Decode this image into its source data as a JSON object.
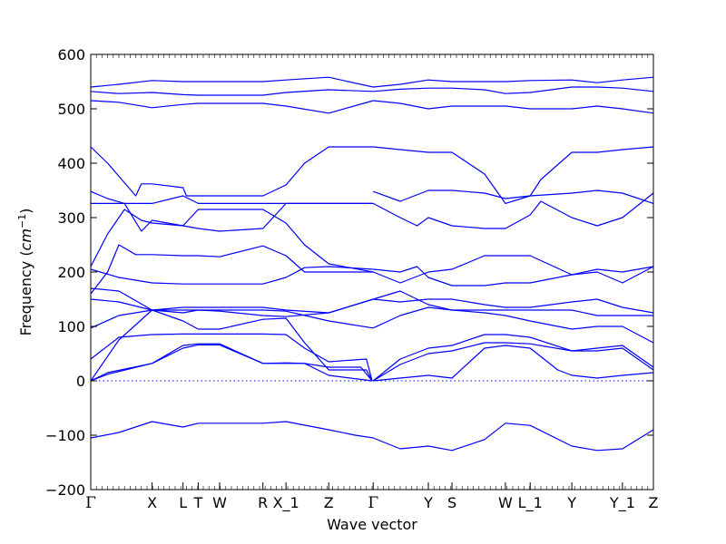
{
  "chart_data": {
    "type": "line",
    "title": "",
    "xlabel": "Wave vector",
    "ylabel": "Frequency",
    "ylabel_unit": "cm",
    "ylabel_unit_exp": "−1",
    "ylim": [
      -200,
      600
    ],
    "xlim": [
      0,
      1
    ],
    "yticks": [
      -200,
      -100,
      0,
      100,
      200,
      300,
      400,
      500,
      600
    ],
    "ytick_labels": [
      "−200",
      "−100",
      "0",
      "100",
      "200",
      "300",
      "400",
      "500",
      "600"
    ],
    "high_symmetry_points": [
      {
        "label": "Γ",
        "x": 0.0
      },
      {
        "label": "X",
        "x": 0.109
      },
      {
        "label": "L",
        "x": 0.164
      },
      {
        "label": "T",
        "x": 0.191
      },
      {
        "label": "W",
        "x": 0.229
      },
      {
        "label": "R",
        "x": 0.306
      },
      {
        "label": "X_1",
        "x": 0.347
      },
      {
        "label": "Z",
        "x": 0.423
      },
      {
        "label": "Γ",
        "x": 0.502
      },
      {
        "label": "Y",
        "x": 0.6
      },
      {
        "label": "S",
        "x": 0.642
      },
      {
        "label": "W",
        "x": 0.737
      },
      {
        "label": "L_1",
        "x": 0.781
      },
      {
        "label": "Y",
        "x": 0.855
      },
      {
        "label": "Y_1",
        "x": 0.945
      },
      {
        "label": "Z",
        "x": 1.0
      }
    ],
    "zero_line": {
      "y": 0,
      "style": "dotted"
    },
    "line_color": "#0000ff",
    "series": [
      {
        "x": [
          0,
          0.05,
          0.109,
          0.164,
          0.191,
          0.229,
          0.306,
          0.347,
          0.423,
          0.47,
          0.502,
          0.55,
          0.6,
          0.642,
          0.7,
          0.737,
          0.781,
          0.855,
          0.9,
          0.945,
          1.0
        ],
        "y": [
          -105,
          -95,
          -75,
          -85,
          -78,
          -78,
          -78,
          -75,
          -90,
          -100,
          -105,
          -125,
          -120,
          -128,
          -108,
          -78,
          -82,
          -120,
          -128,
          -125,
          -90
        ]
      },
      {
        "x": [
          0,
          0.03,
          0.109,
          0.164,
          0.191,
          0.229,
          0.306,
          0.347,
          0.38,
          0.423,
          0.5
        ],
        "y": [
          0,
          15,
          32,
          65,
          68,
          68,
          32,
          32,
          32,
          10,
          0
        ]
      },
      {
        "x": [
          0,
          0.03,
          0.109,
          0.164,
          0.191,
          0.229,
          0.306,
          0.347,
          0.38,
          0.423,
          0.48,
          0.5
        ],
        "y": [
          0,
          12,
          32,
          60,
          66,
          66,
          32,
          33,
          32,
          25,
          25,
          0
        ]
      },
      {
        "x": [
          0,
          0.05,
          0.109,
          0.164,
          0.191,
          0.229,
          0.306,
          0.347,
          0.38,
          0.423,
          0.49,
          0.5
        ],
        "y": [
          40,
          80,
          85,
          86,
          86,
          86,
          86,
          85,
          60,
          35,
          40,
          0
        ]
      },
      {
        "x": [
          0,
          0.05,
          0.109,
          0.164,
          0.191,
          0.229,
          0.306,
          0.347,
          0.38,
          0.423,
          0.49,
          0.5
        ],
        "y": [
          0,
          75,
          130,
          110,
          95,
          95,
          113,
          115,
          70,
          20,
          20,
          0
        ]
      },
      {
        "x": [
          0,
          0.05,
          0.109,
          0.164,
          0.191,
          0.229,
          0.306,
          0.347,
          0.423,
          0.502
        ],
        "y": [
          97,
          120,
          130,
          130,
          130,
          130,
          130,
          128,
          110,
          97
        ]
      },
      {
        "x": [
          0,
          0.05,
          0.109,
          0.164,
          0.191,
          0.229,
          0.306,
          0.347,
          0.423,
          0.502
        ],
        "y": [
          150,
          145,
          130,
          135,
          135,
          135,
          135,
          130,
          125,
          150
        ]
      },
      {
        "x": [
          0,
          0.05,
          0.109,
          0.164,
          0.191,
          0.229,
          0.306,
          0.347,
          0.423,
          0.502
        ],
        "y": [
          170,
          165,
          130,
          125,
          130,
          128,
          120,
          118,
          125,
          150
        ]
      },
      {
        "x": [
          0,
          0.03,
          0.05,
          0.08,
          0.109,
          0.164,
          0.191,
          0.229,
          0.306,
          0.347,
          0.38,
          0.423,
          0.502
        ],
        "y": [
          160,
          200,
          250,
          232,
          232,
          230,
          230,
          228,
          248,
          230,
          200,
          200,
          200
        ]
      },
      {
        "x": [
          0,
          0.05,
          0.109,
          0.164,
          0.191,
          0.229,
          0.306,
          0.347,
          0.38,
          0.423,
          0.502
        ],
        "y": [
          205,
          190,
          180,
          178,
          178,
          178,
          178,
          190,
          208,
          210,
          205
        ]
      },
      {
        "x": [
          0,
          0.03,
          0.06,
          0.09,
          0.109,
          0.164,
          0.191,
          0.229,
          0.306,
          0.347,
          0.38,
          0.423,
          0.502
        ],
        "y": [
          210,
          270,
          315,
          295,
          290,
          285,
          315,
          315,
          315,
          290,
          250,
          215,
          200
        ]
      },
      {
        "x": [
          0,
          0.06,
          0.09,
          0.109,
          0.164,
          0.191,
          0.229,
          0.306,
          0.347,
          0.423,
          0.502
        ],
        "y": [
          326,
          326,
          275,
          295,
          285,
          280,
          275,
          280,
          326,
          326,
          326
        ]
      },
      {
        "x": [
          0,
          0.03,
          0.06,
          0.109,
          0.164,
          0.191,
          0.229,
          0.306,
          0.347,
          0.38,
          0.423,
          0.502
        ],
        "y": [
          348,
          335,
          326,
          326,
          340,
          326,
          326,
          326,
          326,
          326,
          326,
          326
        ]
      },
      {
        "x": [
          0,
          0.03,
          0.08,
          0.09,
          0.109,
          0.164,
          0.17,
          0.191,
          0.229,
          0.306,
          0.347,
          0.38,
          0.423,
          0.502
        ],
        "y": [
          430,
          400,
          340,
          362,
          362,
          355,
          340,
          340,
          340,
          340,
          360,
          400,
          430,
          430
        ]
      },
      {
        "x": [
          0,
          0.05,
          0.109,
          0.164,
          0.191,
          0.229,
          0.306,
          0.347,
          0.423,
          0.502
        ],
        "y": [
          515,
          512,
          502,
          508,
          510,
          510,
          510,
          505,
          492,
          515
        ]
      },
      {
        "x": [
          0,
          0.05,
          0.109,
          0.164,
          0.191,
          0.229,
          0.306,
          0.347,
          0.423,
          0.502
        ],
        "y": [
          532,
          528,
          530,
          526,
          525,
          525,
          525,
          530,
          535,
          532
        ]
      },
      {
        "x": [
          0,
          0.05,
          0.109,
          0.164,
          0.191,
          0.229,
          0.306,
          0.347,
          0.423,
          0.502
        ],
        "y": [
          540,
          545,
          552,
          550,
          550,
          550,
          550,
          553,
          558,
          540
        ]
      },
      {
        "x": [
          0.502,
          0.55,
          0.6,
          0.642,
          0.7,
          0.737,
          0.781,
          0.83,
          0.855,
          0.9,
          0.945,
          1.0
        ],
        "y": [
          0,
          5,
          10,
          5,
          60,
          65,
          60,
          20,
          10,
          5,
          10,
          15
        ]
      },
      {
        "x": [
          0.502,
          0.55,
          0.6,
          0.642,
          0.7,
          0.737,
          0.781,
          0.855,
          0.9,
          0.945,
          1.0
        ],
        "y": [
          0,
          30,
          50,
          55,
          70,
          70,
          68,
          55,
          55,
          60,
          20
        ]
      },
      {
        "x": [
          0.502,
          0.55,
          0.6,
          0.642,
          0.7,
          0.737,
          0.781,
          0.855,
          0.9,
          0.945,
          1.0
        ],
        "y": [
          0,
          40,
          60,
          65,
          85,
          85,
          80,
          55,
          60,
          65,
          25
        ]
      },
      {
        "x": [
          0.502,
          0.55,
          0.6,
          0.642,
          0.7,
          0.737,
          0.781,
          0.855,
          0.9,
          0.945,
          1.0
        ],
        "y": [
          97,
          120,
          135,
          130,
          125,
          120,
          110,
          95,
          100,
          100,
          70
        ]
      },
      {
        "x": [
          0.502,
          0.55,
          0.6,
          0.642,
          0.7,
          0.737,
          0.781,
          0.855,
          0.9,
          0.945,
          1.0
        ],
        "y": [
          150,
          165,
          140,
          130,
          130,
          130,
          130,
          130,
          120,
          120,
          120
        ]
      },
      {
        "x": [
          0.502,
          0.55,
          0.6,
          0.642,
          0.7,
          0.737,
          0.781,
          0.855,
          0.9,
          0.945,
          1.0
        ],
        "y": [
          150,
          145,
          150,
          150,
          140,
          135,
          135,
          145,
          150,
          135,
          125
        ]
      },
      {
        "x": [
          0.502,
          0.55,
          0.6,
          0.642,
          0.7,
          0.737,
          0.781,
          0.855,
          0.9,
          0.945,
          1.0
        ],
        "y": [
          200,
          180,
          200,
          205,
          230,
          230,
          230,
          195,
          200,
          180,
          210
        ]
      },
      {
        "x": [
          0.502,
          0.55,
          0.58,
          0.6,
          0.642,
          0.7,
          0.737,
          0.781,
          0.855,
          0.9,
          0.945,
          1.0
        ],
        "y": [
          205,
          200,
          210,
          190,
          175,
          175,
          180,
          180,
          195,
          205,
          200,
          210
        ]
      },
      {
        "x": [
          0.502,
          0.55,
          0.58,
          0.6,
          0.642,
          0.7,
          0.737,
          0.781,
          0.8,
          0.855,
          0.9,
          0.945,
          1.0
        ],
        "y": [
          326,
          300,
          285,
          300,
          285,
          280,
          280,
          305,
          330,
          300,
          285,
          300,
          345
        ]
      },
      {
        "x": [
          0.502,
          0.55,
          0.6,
          0.642,
          0.7,
          0.737,
          0.781,
          0.855,
          0.9,
          0.945,
          1.0
        ],
        "y": [
          348,
          330,
          350,
          350,
          345,
          335,
          340,
          345,
          350,
          345,
          326
        ]
      },
      {
        "x": [
          0.502,
          0.55,
          0.6,
          0.642,
          0.7,
          0.737,
          0.781,
          0.8,
          0.855,
          0.9,
          0.945,
          1.0
        ],
        "y": [
          430,
          425,
          420,
          420,
          380,
          326,
          340,
          370,
          420,
          420,
          425,
          430
        ]
      },
      {
        "x": [
          0.502,
          0.55,
          0.6,
          0.642,
          0.7,
          0.737,
          0.781,
          0.855,
          0.9,
          0.945,
          1.0
        ],
        "y": [
          515,
          510,
          500,
          505,
          505,
          505,
          500,
          500,
          505,
          500,
          492
        ]
      },
      {
        "x": [
          0.502,
          0.55,
          0.6,
          0.642,
          0.7,
          0.737,
          0.781,
          0.855,
          0.9,
          0.945,
          1.0
        ],
        "y": [
          532,
          536,
          538,
          538,
          535,
          528,
          530,
          540,
          540,
          538,
          532
        ]
      },
      {
        "x": [
          0.502,
          0.55,
          0.6,
          0.642,
          0.7,
          0.737,
          0.781,
          0.855,
          0.9,
          0.945,
          1.0
        ],
        "y": [
          540,
          545,
          553,
          550,
          550,
          550,
          552,
          553,
          548,
          553,
          558
        ]
      }
    ]
  }
}
